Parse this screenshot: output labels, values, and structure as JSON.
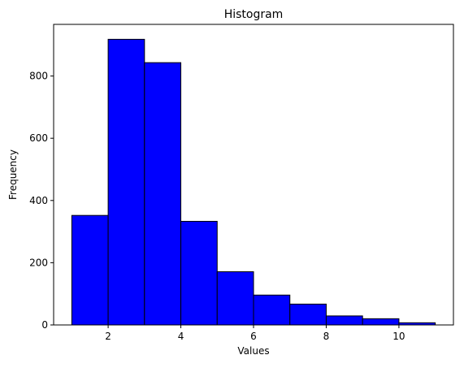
{
  "chart_data": {
    "type": "bar",
    "title": "Histogram",
    "xlabel": "Values",
    "ylabel": "Frequency",
    "bin_edges": [
      1,
      2,
      3,
      4,
      5,
      6,
      7,
      8,
      9,
      10,
      11
    ],
    "values": [
      352,
      918,
      843,
      333,
      171,
      96,
      67,
      29,
      20,
      7
    ],
    "xlim": [
      0.5,
      11.5
    ],
    "ylim": [
      0,
      966
    ],
    "xticks": [
      2,
      4,
      6,
      8,
      10
    ],
    "yticks": [
      0,
      200,
      400,
      600,
      800
    ],
    "bar_color": "#0000ff",
    "edge_color": "#000000",
    "grid": false
  }
}
